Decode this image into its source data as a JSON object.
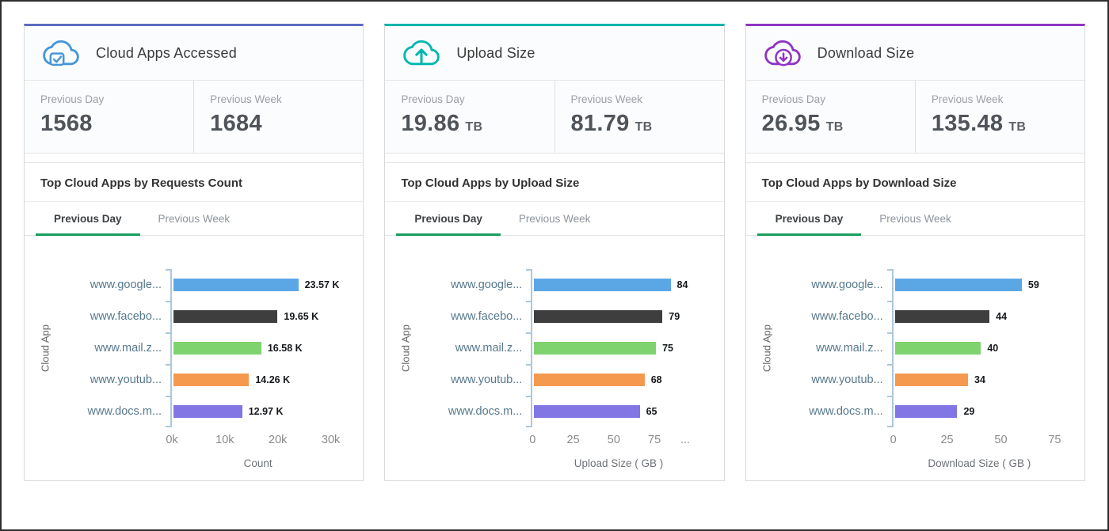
{
  "cards": [
    {
      "title": "Cloud Apps Accessed",
      "icon": "cloud-check-icon",
      "icon_color": "#4596d8",
      "accent": "#5c6bc0",
      "stats": [
        {
          "label": "Previous Day",
          "value": "1568",
          "unit": ""
        },
        {
          "label": "Previous Week",
          "value": "1684",
          "unit": ""
        }
      ],
      "chart_title": "Top Cloud Apps by Requests Count",
      "tabs": [
        {
          "label": "Previous Day",
          "active": true
        },
        {
          "label": "Previous Week",
          "active": false
        }
      ]
    },
    {
      "title": "Upload Size",
      "icon": "cloud-upload-icon",
      "icon_color": "#00b7ae",
      "accent": "#00b5ad",
      "stats": [
        {
          "label": "Previous Day",
          "value": "19.86",
          "unit": "TB"
        },
        {
          "label": "Previous Week",
          "value": "81.79",
          "unit": "TB"
        }
      ],
      "chart_title": "Top Cloud Apps by Upload Size",
      "tabs": [
        {
          "label": "Previous Day",
          "active": true
        },
        {
          "label": "Previous Week",
          "active": false
        }
      ]
    },
    {
      "title": "Download Size",
      "icon": "cloud-download-icon",
      "icon_color": "#8e35c4",
      "accent": "#8e35c4",
      "stats": [
        {
          "label": "Previous Day",
          "value": "26.95",
          "unit": "TB"
        },
        {
          "label": "Previous Week",
          "value": "135.48",
          "unit": "TB"
        }
      ],
      "chart_title": "Top Cloud Apps by Download Size",
      "tabs": [
        {
          "label": "Previous Day",
          "active": true
        },
        {
          "label": "Previous Week",
          "active": false
        }
      ]
    }
  ],
  "chart_data": [
    {
      "type": "bar",
      "orientation": "horizontal",
      "title": "Top Cloud Apps by Requests Count",
      "categories": [
        "www.google...",
        "www.facebo...",
        "www.mail.z...",
        "www.youtub...",
        "www.docs.m..."
      ],
      "values": [
        23570,
        19650,
        16580,
        14260,
        12970
      ],
      "value_labels": [
        "23.57 K",
        "19.65 K",
        "16.58 K",
        "14.26 K",
        "12.97 K"
      ],
      "bar_colors": [
        "#5ba7e5",
        "#3e3e3e",
        "#7ed36f",
        "#f5994e",
        "#8176e3"
      ],
      "xlabel": "Count",
      "ylabel": "Cloud App",
      "xmax": 32500,
      "ticks": [
        {
          "value": 0,
          "label": "0k"
        },
        {
          "value": 10000,
          "label": "10k"
        },
        {
          "value": 20000,
          "label": "20k"
        },
        {
          "value": 30000,
          "label": "30k"
        }
      ]
    },
    {
      "type": "bar",
      "orientation": "horizontal",
      "title": "Top Cloud Apps by Upload Size",
      "categories": [
        "www.google...",
        "www.facebo...",
        "www.mail.z...",
        "www.youtub...",
        "www.docs.m..."
      ],
      "values": [
        84,
        79,
        75,
        68,
        65
      ],
      "value_labels": [
        "84",
        "79",
        "75",
        "68",
        "65"
      ],
      "bar_colors": [
        "#5ba7e5",
        "#3e3e3e",
        "#7ed36f",
        "#f5994e",
        "#8176e3"
      ],
      "xlabel": "Upload Size ( GB )",
      "ylabel": "Cloud App",
      "xmax": 106,
      "ticks": [
        {
          "value": 0,
          "label": "0"
        },
        {
          "value": 25,
          "label": "25"
        },
        {
          "value": 50,
          "label": "50"
        },
        {
          "value": 75,
          "label": "75"
        },
        {
          "value": 94,
          "label": "..."
        }
      ]
    },
    {
      "type": "bar",
      "orientation": "horizontal",
      "title": "Top Cloud Apps by Download Size",
      "categories": [
        "www.google...",
        "www.facebo...",
        "www.mail.z...",
        "www.youtub...",
        "www.docs.m..."
      ],
      "values": [
        59,
        44,
        40,
        34,
        29
      ],
      "value_labels": [
        "59",
        "44",
        "40",
        "34",
        "29"
      ],
      "bar_colors": [
        "#5ba7e5",
        "#3e3e3e",
        "#7ed36f",
        "#f5994e",
        "#8176e3"
      ],
      "xlabel": "Download Size ( GB )",
      "ylabel": "Cloud App",
      "xmax": 80,
      "ticks": [
        {
          "value": 0,
          "label": "0"
        },
        {
          "value": 25,
          "label": "25"
        },
        {
          "value": 50,
          "label": "50"
        },
        {
          "value": 75,
          "label": "75"
        }
      ]
    }
  ]
}
